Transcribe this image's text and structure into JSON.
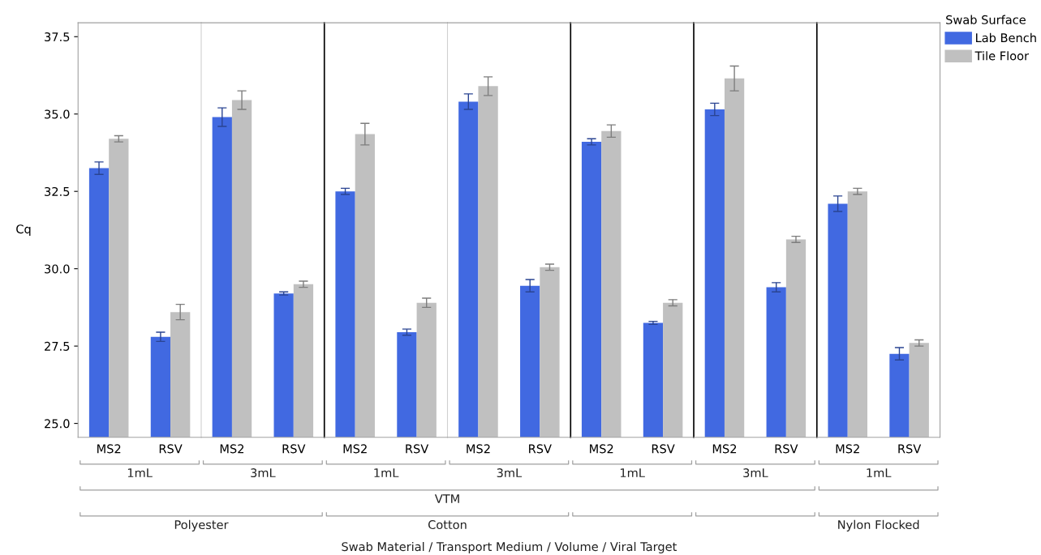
{
  "chart_data": [
    {
      "type": "bar",
      "categories": [
        "MS2",
        "RSV"
      ],
      "xlabel": "Polyester",
      "ylabel": "Cq",
      "annotations": [
        "1mL",
        "VTM",
        "Swab Material / Transport Medium / Volume / Viral Target"
      ],
      "ylim": [
        24.55,
        37.95
      ],
      "yticks": [
        {
          "value": 25,
          "label": "25.0"
        },
        {
          "value": 27.5,
          "label": "27.5"
        },
        {
          "value": 30,
          "label": "30.0"
        },
        {
          "value": 32.5,
          "label": "32.5"
        },
        {
          "value": 35,
          "label": "35.0"
        },
        {
          "value": 37.5,
          "label": "37.5"
        }
      ],
      "series": [
        {
          "color": "#4169e1",
          "values": [
            33.25,
            27.8
          ],
          "errors": [
            0.2,
            0.15
          ]
        },
        {
          "color": "#c0c0c0",
          "values": [
            34.2,
            28.6
          ],
          "errors": [
            0.1,
            0.25
          ]
        }
      ]
    },
    {
      "type": "bar",
      "categories": [
        "MS2",
        "RSV"
      ],
      "annotations": [
        "3mL"
      ],
      "ylim": [
        24.55,
        37.95
      ],
      "tick_labels": "x",
      "series": [
        {
          "color": "#4169e1",
          "values": [
            34.9,
            29.2
          ],
          "errors": [
            0.3,
            0.05
          ]
        },
        {
          "color": "#c0c0c0",
          "values": [
            35.45,
            29.5
          ],
          "errors": [
            0.3,
            0.1
          ]
        }
      ]
    },
    {
      "type": "bar",
      "categories": [
        "MS2",
        "RSV"
      ],
      "xlabel": "Cotton",
      "annotations": [
        "1mL"
      ],
      "ylim": [
        24.55,
        37.95
      ],
      "tick_labels": "x",
      "series": [
        {
          "color": "#4169e1",
          "values": [
            32.5,
            27.95
          ],
          "errors": [
            0.1,
            0.1
          ]
        },
        {
          "color": "#c0c0c0",
          "values": [
            34.35,
            28.9
          ],
          "errors": [
            0.35,
            0.15
          ]
        }
      ]
    },
    {
      "type": "bar",
      "categories": [
        "MS2",
        "RSV"
      ],
      "annotations": [
        "3mL"
      ],
      "ylim": [
        24.55,
        37.95
      ],
      "tick_labels": "x",
      "series": [
        {
          "color": "#4169e1",
          "values": [
            35.4,
            29.45
          ],
          "errors": [
            0.25,
            0.2
          ]
        },
        {
          "color": "#c0c0c0",
          "values": [
            35.9,
            30.05
          ],
          "errors": [
            0.3,
            0.1
          ]
        }
      ]
    },
    {
      "type": "bar",
      "categories": [
        "MS2",
        "RSV"
      ],
      "annotations": [
        "1mL"
      ],
      "ylim": [
        24.55,
        37.95
      ],
      "tick_labels": "x",
      "series": [
        {
          "color": "#4169e1",
          "values": [
            34.1,
            28.25
          ],
          "errors": [
            0.1,
            0.05
          ]
        },
        {
          "color": "#c0c0c0",
          "values": [
            34.45,
            28.9
          ],
          "errors": [
            0.2,
            0.1
          ]
        }
      ]
    },
    {
      "type": "bar",
      "categories": [
        "MS2",
        "RSV"
      ],
      "annotations": [
        "3mL"
      ],
      "ylim": [
        24.55,
        37.95
      ],
      "tick_labels": "x",
      "series": [
        {
          "color": "#4169e1",
          "values": [
            35.15,
            29.4
          ],
          "errors": [
            0.2,
            0.15
          ]
        },
        {
          "color": "#c0c0c0",
          "values": [
            36.15,
            30.95
          ],
          "errors": [
            0.4,
            0.1
          ]
        }
      ]
    },
    {
      "type": "bar",
      "categories": [
        "MS2",
        "RSV"
      ],
      "xlabel": "Nylon Flocked",
      "annotations": [
        "1mL"
      ],
      "ylim": [
        24.55,
        37.95
      ],
      "tick_labels": "x",
      "legend": "right",
      "legend_title": "Swab Surface",
      "series": [
        {
          "name": "Lab Bench",
          "color": "#4169e1",
          "values": [
            32.1,
            27.25
          ],
          "errors": [
            0.25,
            0.2
          ]
        },
        {
          "name": "Tile Floor",
          "color": "#c0c0c0",
          "values": [
            32.5,
            27.6
          ],
          "errors": [
            0.1,
            0.1
          ]
        }
      ]
    }
  ]
}
